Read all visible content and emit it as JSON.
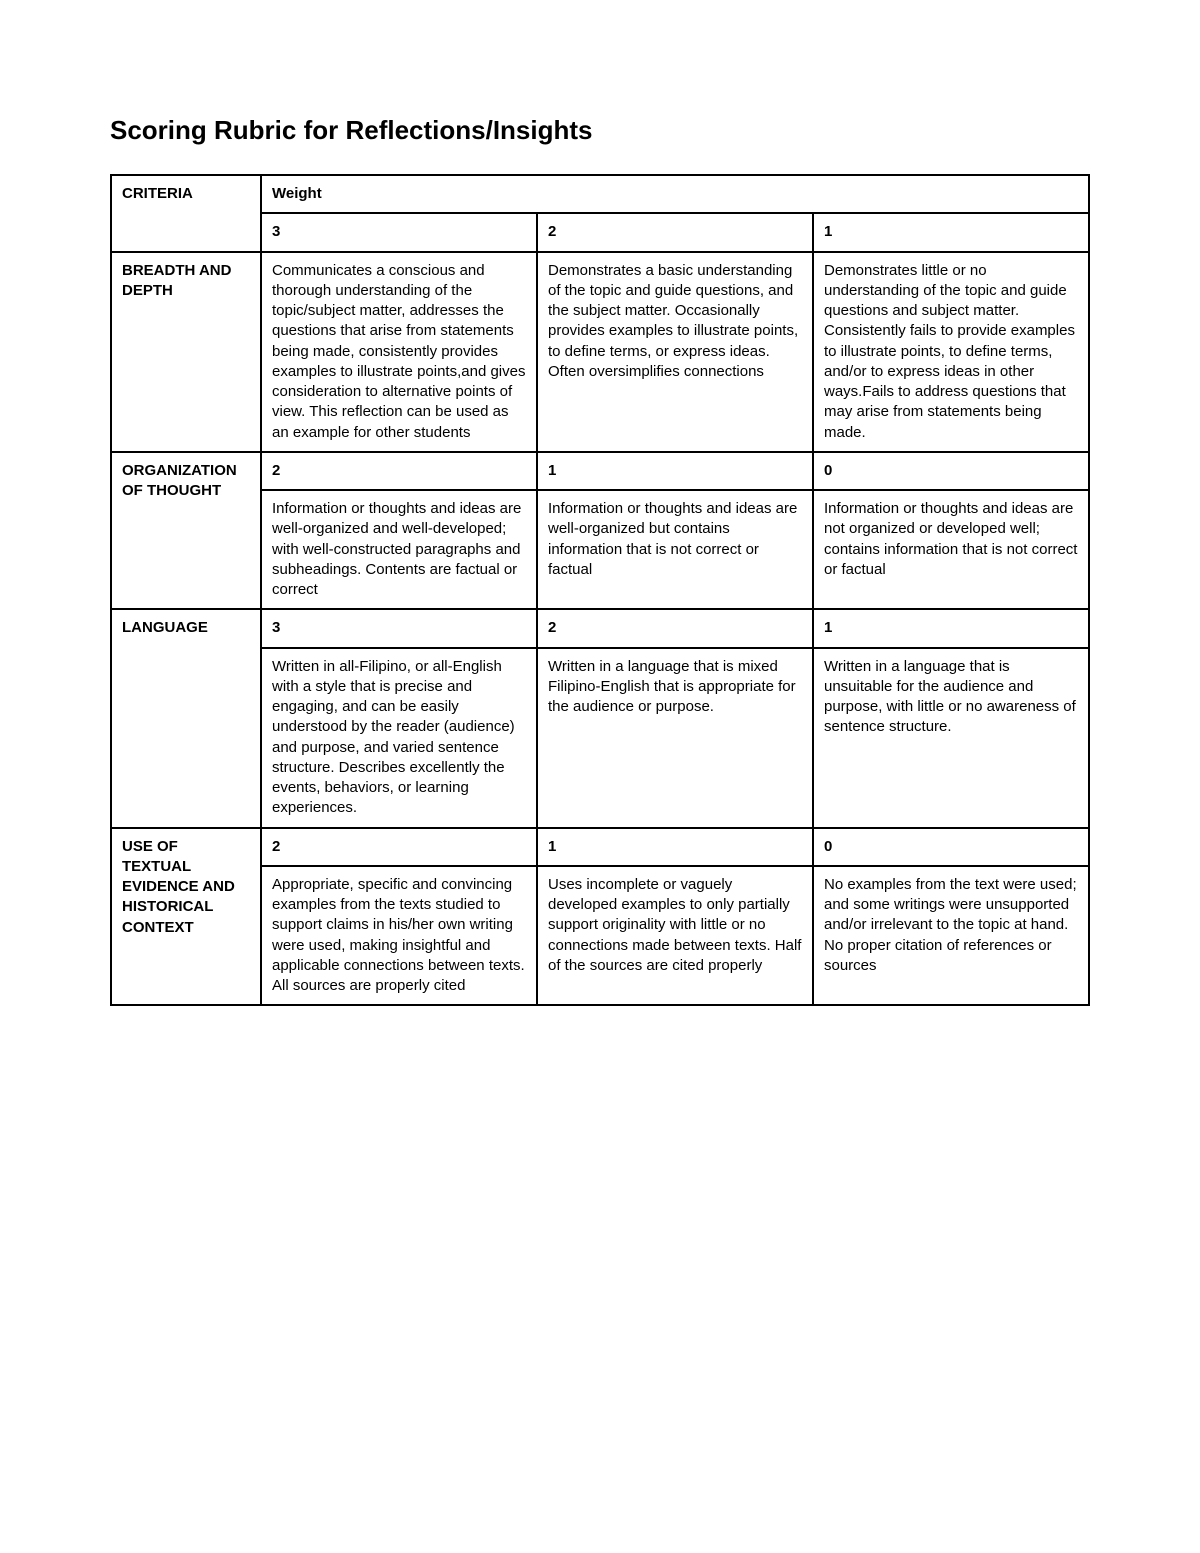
{
  "title": "Scoring Rubric for Reflections/Insights",
  "headers": {
    "criteria": "CRITERIA",
    "weight": "Weight"
  },
  "rows": [
    {
      "criterion": "BREADTH AND DEPTH",
      "uses_top_scores": true,
      "scores": [
        "3",
        "2",
        "1"
      ],
      "cells": [
        "Communicates a conscious and thorough understanding of the topic/subject matter, addresses the questions that arise from statements being made, consistently provides examples to illustrate points,and gives consideration to alternative points of view. This reflection can be used as an example for other students",
        "Demonstrates a basic understanding of the topic and guide questions, and the subject matter. Occasionally provides examples to illustrate points, to define terms, or express ideas. Often oversimplifies connections",
        "Demonstrates little or no understanding of the topic and guide questions and subject matter. Consistently fails to provide examples to illustrate points, to define terms, and/or to express ideas in other ways.Fails to address questions that may arise from statements being made."
      ]
    },
    {
      "criterion": "ORGANIZATION OF THOUGHT",
      "uses_top_scores": false,
      "scores": [
        "2",
        "1",
        "0"
      ],
      "cells": [
        "Information or thoughts and ideas are well-organized and well-developed; with well-constructed paragraphs and subheadings. Contents are factual or correct",
        "Information or thoughts and ideas are well-organized but contains information that is not correct or factual",
        "Information or thoughts and ideas are not organized or developed well; contains information that is not correct or factual"
      ]
    },
    {
      "criterion": "LANGUAGE",
      "uses_top_scores": false,
      "scores": [
        "3",
        "2",
        "1"
      ],
      "cells": [
        "Written in all-Filipino, or all-English with a style that is precise and engaging, and can be easily understood by the reader (audience) and purpose, and varied sentence structure. Describes excellently the events, behaviors, or learning experiences.",
        "Written in a language that is mixed Filipino-English that is appropriate for the audience or purpose.",
        "Written in a language that is unsuitable for the audience and purpose, with little or no awareness of sentence structure."
      ]
    },
    {
      "criterion": "USE OF TEXTUAL EVIDENCE AND HISTORICAL CONTEXT",
      "uses_top_scores": false,
      "scores": [
        "2",
        "1",
        "0"
      ],
      "cells": [
        "Appropriate, specific and convincing examples from the texts studied to support claims in his/her own writing were used, making insightful and applicable connections between texts. All sources are properly cited",
        "Uses incomplete or vaguely developed examples to only partially support originality with little or no connections made between texts. Half of the sources are cited properly",
        "No examples from the text were used; and some writings were unsupported and/or irrelevant to the topic at hand. No proper citation of references or sources"
      ]
    }
  ]
}
